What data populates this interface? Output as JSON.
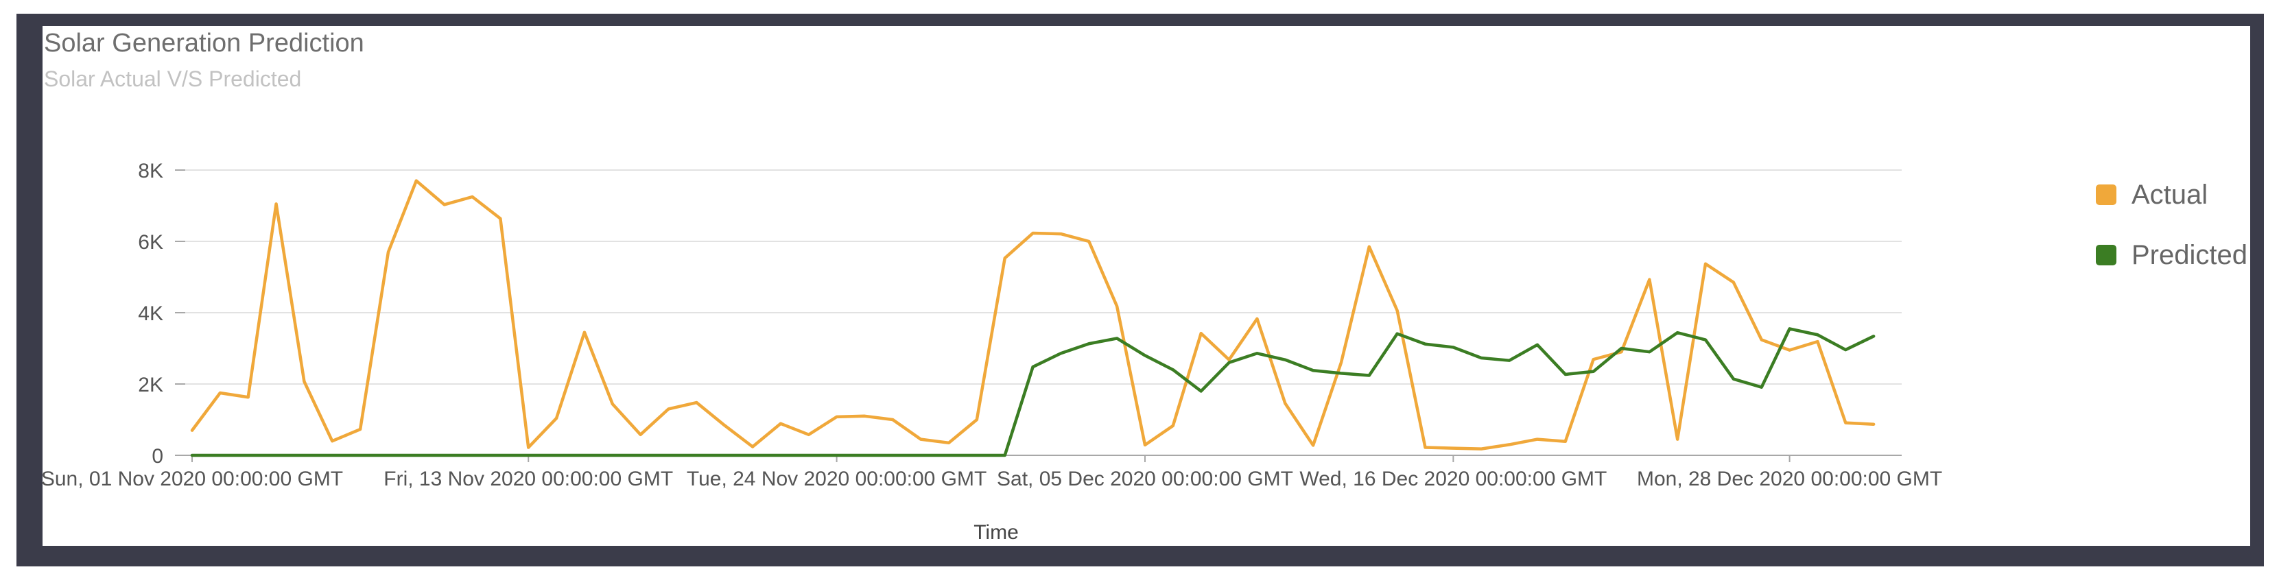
{
  "chart_data": {
    "type": "line",
    "title": "Solar Generation Prediction",
    "subtitle": "Solar Actual V/S Predicted",
    "xlabel": "Time",
    "ylabel": "",
    "x_tick_labels": [
      "Sun, 01 Nov 2020 00:00:00 GMT",
      "Fri, 13 Nov 2020 00:00:00 GMT",
      "Tue, 24 Nov 2020 00:00:00 GMT",
      "Sat, 05 Dec 2020 00:00:00 GMT",
      "Wed, 16 Dec 2020 00:00:00 GMT",
      "Mon, 28 Dec 2020 00:00:00 GMT"
    ],
    "x_tick_days": [
      0,
      12,
      23,
      34,
      45,
      57
    ],
    "y_ticks": [
      0,
      2000,
      4000,
      6000,
      8000
    ],
    "y_tick_labels": [
      "0",
      "2K",
      "4K",
      "6K",
      "8K"
    ],
    "ylim": [
      0,
      8000
    ],
    "xlim_days": [
      0,
      61
    ],
    "grid": true,
    "legend_position": "right",
    "series": [
      {
        "name": "Actual",
        "color": "#f0a83a",
        "values": [
          700,
          1750,
          1630,
          7050,
          2070,
          400,
          730,
          5700,
          7700,
          7030,
          7250,
          6640,
          220,
          1040,
          3450,
          1440,
          580,
          1300,
          1480,
          840,
          240,
          890,
          580,
          1080,
          1100,
          1000,
          450,
          350,
          1000,
          5530,
          6230,
          6210,
          6000,
          4180,
          290,
          830,
          3420,
          2680,
          3830,
          1460,
          280,
          2600,
          5850,
          4060,
          220,
          200,
          180,
          300,
          450,
          390,
          2690,
          2900,
          4930,
          450,
          5370,
          4850,
          3240,
          2950,
          3190,
          910,
          870
        ]
      },
      {
        "name": "Predicted",
        "color": "#3b7d23",
        "values": [
          0,
          0,
          0,
          0,
          0,
          0,
          0,
          0,
          0,
          0,
          0,
          0,
          0,
          0,
          0,
          0,
          0,
          0,
          0,
          0,
          0,
          0,
          0,
          0,
          0,
          0,
          0,
          0,
          0,
          0,
          2480,
          2860,
          3130,
          3280,
          2800,
          2400,
          1800,
          2600,
          2860,
          2680,
          2380,
          2300,
          2240,
          3410,
          3120,
          3030,
          2730,
          2660,
          3100,
          2270,
          2350,
          3000,
          2900,
          3440,
          3240,
          2140,
          1910,
          3550,
          3380,
          2960,
          3340
        ]
      }
    ]
  }
}
